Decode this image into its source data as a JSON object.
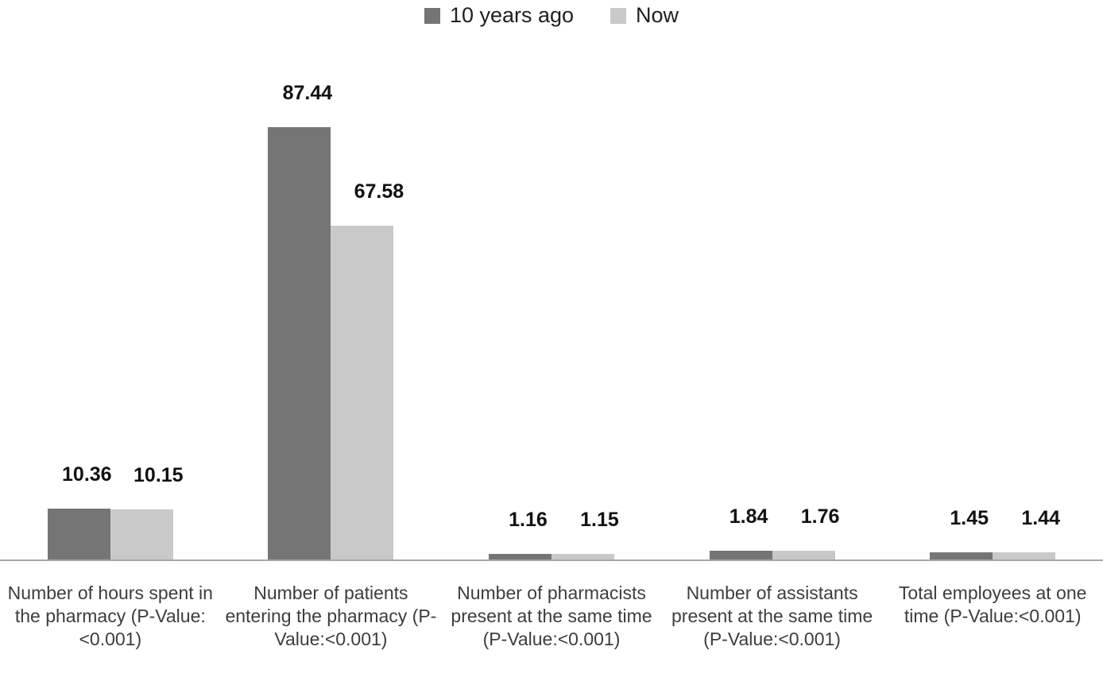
{
  "chart_data": {
    "type": "bar",
    "title": "",
    "categories": [
      "Number of hours spent in the pharmacy (P-Value:<0.001)",
      "Number of patients entering the pharmacy (P-Value:<0.001)",
      "Number of pharmacists present at the same time (P-Value:<0.001)",
      "Number of assistants present at the same time (P-Value:<0.001)",
      "Total employees at one time (P-Value:<0.001)"
    ],
    "series": [
      {
        "name": "10 years ago",
        "color": "#757575",
        "values": [
          10.36,
          87.44,
          1.16,
          1.84,
          1.45
        ]
      },
      {
        "name": "Now",
        "color": "#c9c9c9",
        "values": [
          10.15,
          67.58,
          1.15,
          1.76,
          1.44
        ]
      }
    ],
    "data_labels": true,
    "legend_position": "top",
    "grid": false,
    "y_axis_visible": false,
    "x_axis_line_color": "#a6a6a6",
    "background_color": "#ffffff",
    "value_label_color": "#111111",
    "category_label_color": "#3d3d3d"
  }
}
